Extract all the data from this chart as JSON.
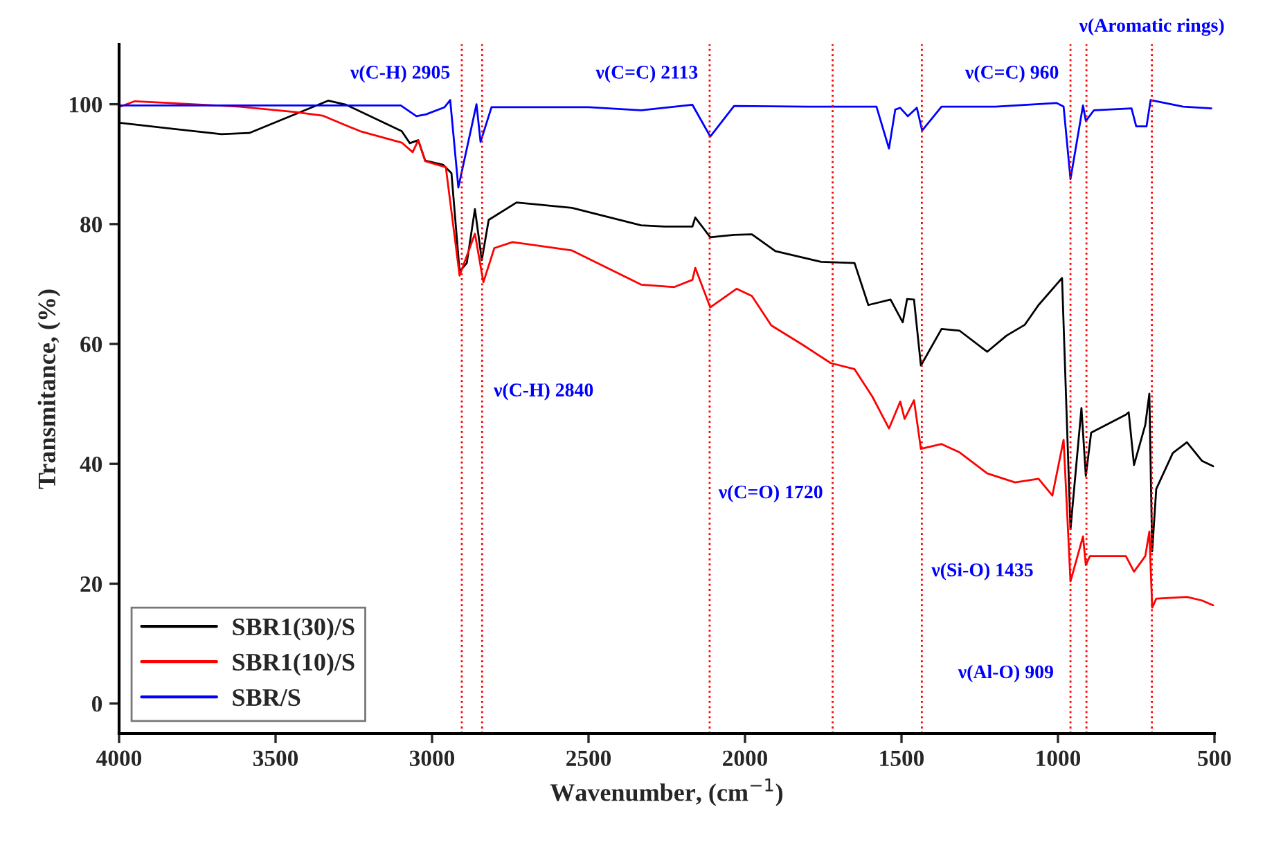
{
  "chart_data": {
    "type": "line",
    "xlabel": "Wavenumber, (cm$^{−1}$)",
    "ylabel": "Transmitance, (%)",
    "xlim": [
      4000,
      500
    ],
    "ylim": [
      -5,
      110
    ],
    "xticks": [
      4000,
      3500,
      3000,
      2500,
      2000,
      1500,
      1000,
      500
    ],
    "yticks": [
      0,
      20,
      40,
      60,
      80,
      100
    ],
    "grid": false,
    "legend": "bottom left",
    "line_style": "solid",
    "series": [
      {
        "name": "SBR1(30)/S",
        "color": "#000000",
        "x": [
          4000,
          3673,
          3584,
          3332,
          3274,
          3097,
          3071,
          3044,
          3022,
          2965,
          2938,
          2912,
          2889,
          2863,
          2841,
          2819,
          2730,
          2553,
          2332,
          2257,
          2168,
          2159,
          2111,
          2035,
          1978,
          1903,
          1757,
          1650,
          1606,
          1535,
          1496,
          1482,
          1460,
          1438,
          1372,
          1314,
          1226,
          1164,
          1106,
          1062,
          987,
          960,
          925,
          911,
          894,
          783,
          774,
          757,
          721,
          708,
          699,
          686,
          633,
          588,
          540,
          504
        ],
        "values": [
          96.9,
          95,
          95.2,
          100.6,
          99.9,
          95.5,
          93.5,
          94,
          90.6,
          89.9,
          88.5,
          72.1,
          73.5,
          82.5,
          74,
          80.7,
          83.6,
          82.7,
          79.8,
          79.6,
          79.6,
          81.1,
          77.8,
          78.2,
          78.3,
          75.5,
          73.7,
          73.5,
          66.5,
          67.4,
          63.6,
          67.5,
          67.4,
          56.4,
          62.5,
          62.2,
          58.7,
          61.4,
          63.2,
          66.5,
          71,
          29.1,
          49.3,
          38,
          45.2,
          48.2,
          48.6,
          39.8,
          46.5,
          51.7,
          25.4,
          35.8,
          41.8,
          43.6,
          40.5,
          39.6
        ]
      },
      {
        "name": "SBR1(10)/S",
        "color": "#ff0000",
        "x": [
          3996,
          3950,
          3615,
          3438,
          3350,
          3230,
          3097,
          3062,
          3044,
          3022,
          2956,
          2912,
          2863,
          2836,
          2801,
          2743,
          2553,
          2332,
          2226,
          2168,
          2159,
          2111,
          2027,
          1978,
          1916,
          1814,
          1726,
          1650,
          1593,
          1540,
          1504,
          1490,
          1460,
          1438,
          1372,
          1314,
          1226,
          1137,
          1062,
          1018,
          982,
          960,
          920,
          911,
          898,
          783,
          757,
          721,
          708,
          699,
          686,
          588,
          540,
          504
        ],
        "values": [
          99.6,
          100.5,
          99.6,
          98.7,
          98.1,
          95.5,
          93.6,
          92,
          94,
          90.5,
          89.5,
          71.4,
          78.4,
          70.3,
          76,
          77,
          75.6,
          69.9,
          69.5,
          70.7,
          72.7,
          66.1,
          69.2,
          68,
          63.1,
          59.8,
          56.8,
          55.8,
          51.2,
          45.9,
          50.4,
          47.5,
          50.6,
          42.5,
          43.3,
          41.9,
          38.4,
          36.9,
          37.5,
          34.7,
          44,
          20.4,
          27.9,
          23.1,
          24.6,
          24.6,
          22,
          24.6,
          28.7,
          16,
          17.5,
          17.8,
          17.2,
          16.4
        ]
      },
      {
        "name": "SBR/S",
        "color": "#0000ff",
        "x": [
          4000,
          3400,
          3100,
          3050,
          3020,
          2960,
          2942,
          2916,
          2858,
          2845,
          2810,
          2500,
          2332,
          2168,
          2111,
          2035,
          1800,
          1580,
          1540,
          1520,
          1504,
          1480,
          1451,
          1434,
          1372,
          1200,
          1004,
          982,
          960,
          920,
          911,
          885,
          765,
          750,
          717,
          704,
          600,
          510
        ],
        "values": [
          99.8,
          99.8,
          99.8,
          98,
          98.3,
          99.5,
          100.7,
          86.1,
          100,
          93.7,
          99.5,
          99.5,
          99,
          99.9,
          94.6,
          99.7,
          99.6,
          99.6,
          92.6,
          99.1,
          99.4,
          98,
          99.4,
          95.6,
          99.6,
          99.6,
          100.2,
          99.6,
          87.5,
          99.8,
          97.2,
          99,
          99.3,
          96.3,
          96.3,
          100.7,
          99.6,
          99.3
        ]
      }
    ],
    "ref_lines": [
      {
        "axis": "x",
        "value": 2905,
        "label": "ν(C-H) 2905",
        "color": "#ff0000",
        "line_style": "dotted"
      },
      {
        "axis": "x",
        "value": 2840,
        "label": "ν(C-H) 2840",
        "color": "#ff0000",
        "line_style": "dotted"
      },
      {
        "axis": "x",
        "value": 2113,
        "label": "ν(C=C) 2113",
        "color": "#ff0000",
        "line_style": "dotted"
      },
      {
        "axis": "x",
        "value": 1720,
        "label": "ν(C=O) 1720",
        "color": "#ff0000",
        "line_style": "dotted"
      },
      {
        "axis": "x",
        "value": 1435,
        "label": "ν(Si-O) 1435",
        "color": "#ff0000",
        "line_style": "dotted"
      },
      {
        "axis": "x",
        "value": 960,
        "label": "ν(C=C) 960",
        "color": "#ff0000",
        "line_style": "dotted"
      },
      {
        "axis": "x",
        "value": 909,
        "label": "ν(Al-O) 909",
        "color": "#ff0000",
        "line_style": "dotted"
      },
      {
        "axis": "x",
        "value": 700,
        "label": "ν(Aromatic rings)",
        "color": "#ff0000",
        "line_style": "dotted"
      }
    ]
  }
}
